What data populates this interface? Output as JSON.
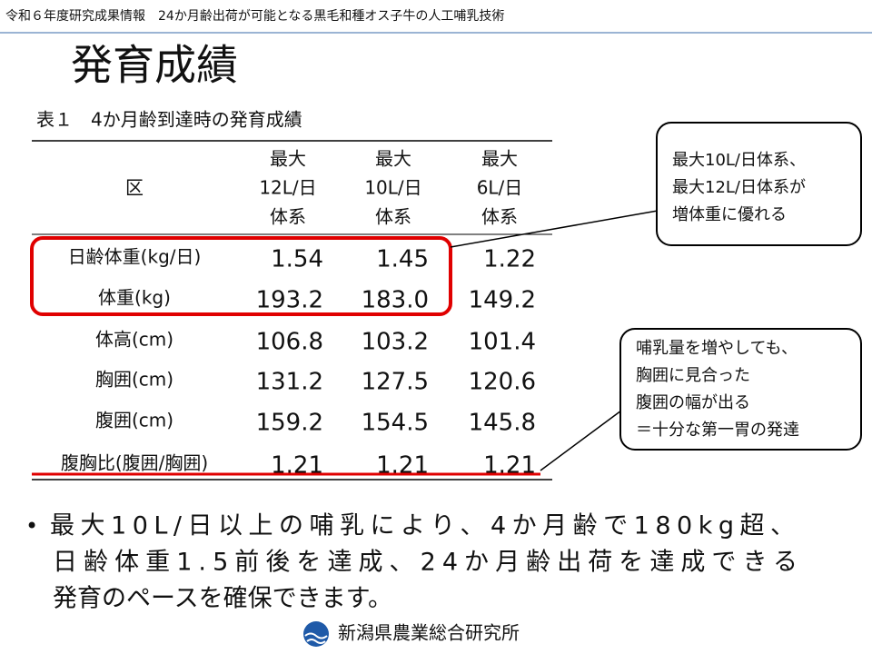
{
  "header": {
    "title": "令和６年度研究成果情報　24か月齢出荷が可能となる黒毛和種オス子牛の人工哺乳技術"
  },
  "slide": {
    "title": "発育成績"
  },
  "table": {
    "caption": "表１　4か月齢到達時の発育成績",
    "columns": [
      "区",
      [
        "最大",
        "12L/日",
        "体系"
      ],
      [
        "最大",
        "10L/日",
        "体系"
      ],
      [
        "最大",
        "6L/日",
        "体系"
      ]
    ],
    "rows": [
      [
        "日齢体重(kg/日)",
        "1.54",
        "1.45",
        "1.22"
      ],
      [
        "体重(kg)",
        "193.2",
        "183.0",
        "149.2"
      ],
      [
        "体高(cm)",
        "106.8",
        "103.2",
        "101.4"
      ],
      [
        "胸囲(cm)",
        "131.2",
        "127.5",
        "120.6"
      ],
      [
        "腹囲(cm)",
        "159.2",
        "154.5",
        "145.8"
      ],
      [
        "腹胸比(腹囲/胸囲)",
        "1.21",
        "1.21",
        "1.21"
      ]
    ]
  },
  "callouts": [
    {
      "lines": [
        "最大10L/日体系、",
        "最大12L/日体系が",
        "増体重に優れる"
      ]
    },
    {
      "lines": [
        "哺乳量を増やしても、",
        "胸囲に見合った",
        "腹囲の幅が出る",
        "＝十分な第一胃の発達"
      ]
    }
  ],
  "bullet": {
    "marker": "•",
    "lines": [
      "最大10L/日以上の哺乳により、4か月齢で180kg超、",
      "日齢体重1.5前後を達成、24か月齢出荷を達成できる",
      "発育のペースを確保できます。"
    ]
  },
  "footer": {
    "organization": "新潟県農業総合研究所"
  }
}
